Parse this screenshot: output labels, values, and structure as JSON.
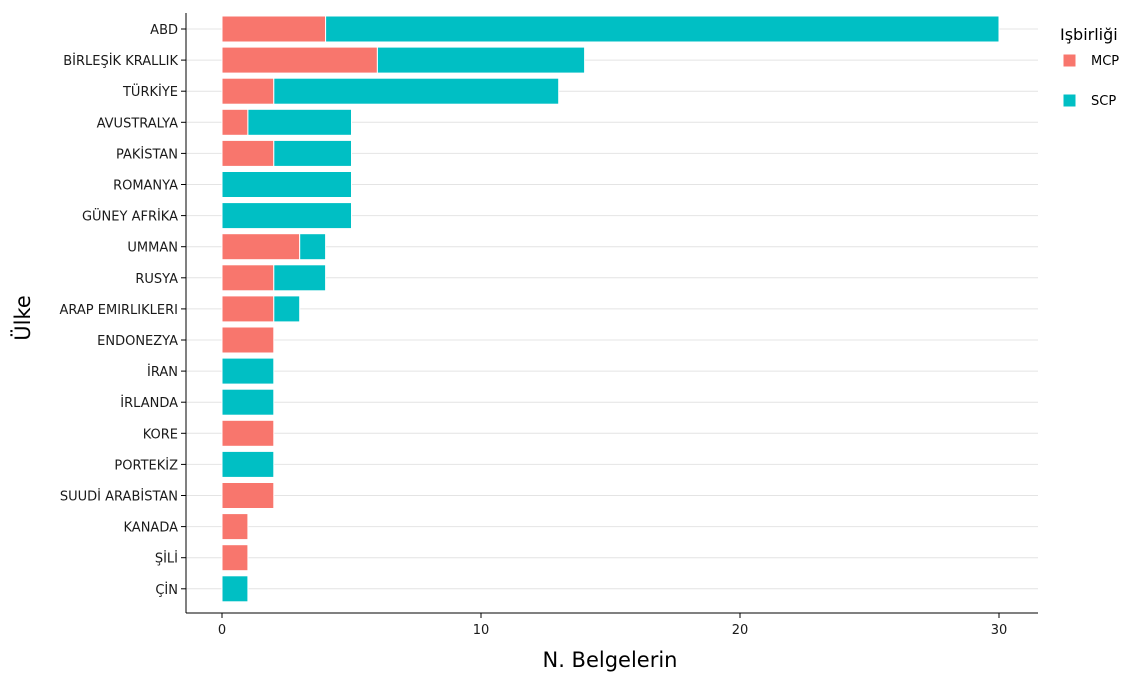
{
  "chart_data": {
    "type": "bar",
    "orientation": "horizontal",
    "stacked": true,
    "xlabel": "N. Belgelerin",
    "ylabel": "Ülke",
    "xlim": [
      0,
      31
    ],
    "xticks": [
      0,
      10,
      20,
      30
    ],
    "grid": true,
    "legend_title": "Işbirliği",
    "legend_position": "top-right",
    "categories": [
      "ABD",
      "BİRLEŞİK KRALLIK",
      "TÜRKİYE",
      "AVUSTRALYA",
      "PAKİSTAN",
      "ROMANYA",
      "GÜNEY AFRİKA",
      "UMMAN",
      "RUSYA",
      "ARAP EMIRLIKLERI",
      "ENDONEZYA",
      "İRAN",
      "İRLANDA",
      "KORE",
      "PORTEKİZ",
      "SUUDİ ARABİSTAN",
      "KANADA",
      "ŞİLİ",
      "ÇİN"
    ],
    "series": [
      {
        "name": "MCP",
        "color": "#f8766d",
        "values": [
          4,
          6,
          2,
          1,
          2,
          0,
          0,
          3,
          2,
          2,
          2,
          0,
          0,
          2,
          0,
          2,
          1,
          1,
          0
        ]
      },
      {
        "name": "SCP",
        "color": "#00bfc4",
        "values": [
          26,
          8,
          11,
          4,
          3,
          5,
          5,
          1,
          2,
          1,
          0,
          2,
          2,
          0,
          2,
          0,
          0,
          0,
          1
        ]
      }
    ]
  }
}
